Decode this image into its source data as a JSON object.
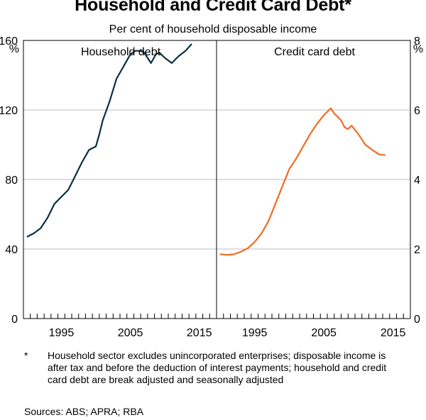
{
  "title": "Household and Credit Card Debt*",
  "subtitle": "Per cent of household disposable income",
  "footnote_mark": "*",
  "footnote": "Household sector excludes unincorporated enterprises; disposable income is after tax and before the deduction of interest payments; household and credit card debt are break adjusted and seasonally adjusted",
  "sources": "Sources:   ABS; APRA; RBA",
  "colors": {
    "household": "#0b2f3f",
    "credit_card": "#f26b21",
    "grid": "#bdbdbd"
  },
  "chart_data": [
    {
      "type": "line",
      "panel": "left",
      "title": "Household debt",
      "ylabel": "%",
      "ylim": [
        0,
        160
      ],
      "yticks": [
        0,
        40,
        80,
        120,
        160
      ],
      "xlim": [
        1990,
        2018
      ],
      "xticks": [
        1995,
        2005,
        2015
      ],
      "series": [
        {
          "name": "Household debt",
          "x": [
            1990.5,
            1991.5,
            1992.5,
            1993.5,
            1994.5,
            1995.5,
            1996.5,
            1997.5,
            1998.5,
            1999.5,
            2000.5,
            2001.0,
            2001.5,
            2002.5,
            2003.5,
            2004.5,
            2005.5,
            2006.2,
            2007.0,
            2007.5,
            2008.5,
            2009.2,
            2009.7,
            2010.5,
            2011.5,
            2012.5,
            2013.5,
            2014.4
          ],
          "y": [
            47,
            49,
            52,
            58,
            66,
            70,
            74,
            82,
            90,
            97,
            99,
            106,
            114,
            125,
            138,
            145,
            152,
            154,
            154,
            153,
            147,
            152,
            153,
            150,
            147,
            151,
            154,
            158
          ]
        }
      ]
    },
    {
      "type": "line",
      "panel": "right",
      "title": "Credit card debt",
      "ylabel": "%",
      "ylim": [
        0,
        8
      ],
      "yticks": [
        0,
        2,
        4,
        6,
        8
      ],
      "xlim": [
        1990,
        2018
      ],
      "xticks": [
        1995,
        2005,
        2015
      ],
      "series": [
        {
          "name": "Credit card debt",
          "x": [
            1990.5,
            1991.5,
            1992.5,
            1993.5,
            1994.5,
            1995.5,
            1996.5,
            1997.5,
            1998.5,
            1999.5,
            2000.5,
            2001.5,
            2002.5,
            2003.5,
            2004.5,
            2005.5,
            2006.5,
            2007.0,
            2007.5,
            2008.0,
            2008.5,
            2009.0,
            2009.5,
            2010.5,
            2011.5,
            2012.5,
            2013.5,
            2014.4
          ],
          "y": [
            1.85,
            1.83,
            1.85,
            1.92,
            2.02,
            2.2,
            2.45,
            2.8,
            3.3,
            3.8,
            4.3,
            4.6,
            4.95,
            5.3,
            5.6,
            5.85,
            6.05,
            5.9,
            5.8,
            5.7,
            5.5,
            5.45,
            5.55,
            5.3,
            5.0,
            4.85,
            4.72,
            4.7
          ]
        }
      ]
    }
  ]
}
